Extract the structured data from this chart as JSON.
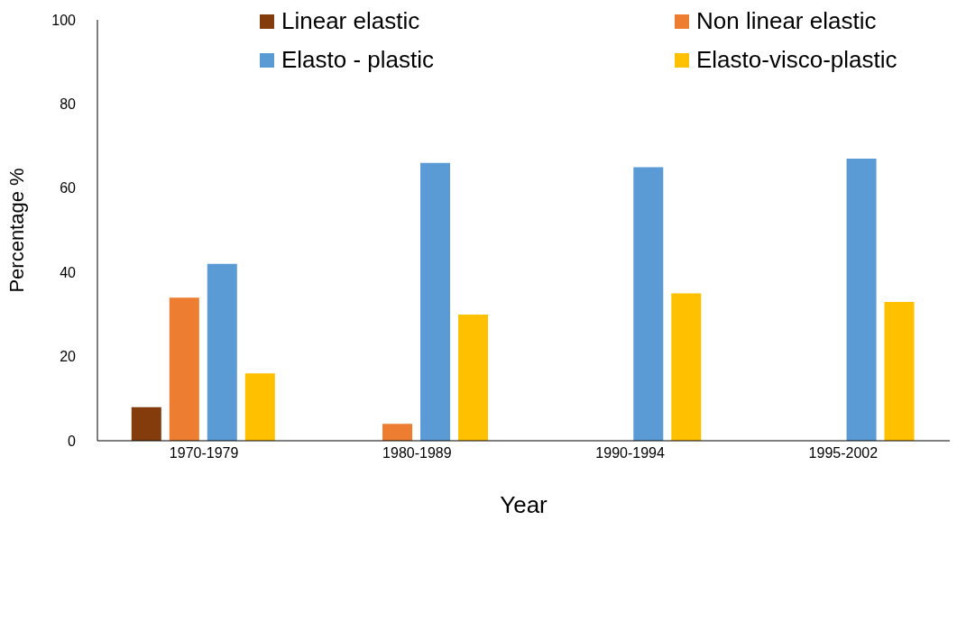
{
  "chart_data": {
    "type": "bar",
    "xlabel": "Year",
    "ylabel": "Percentage %",
    "categories": [
      "1970-1979",
      "1980-1989",
      "1990-1994",
      "1995-2002"
    ],
    "series": [
      {
        "name": "Linear elastic",
        "color": "#843c0c",
        "values": [
          8,
          0,
          0,
          0
        ]
      },
      {
        "name": "Non linear elastic",
        "color": "#ed7d31",
        "values": [
          34,
          4,
          0,
          0
        ]
      },
      {
        "name": "Elasto - plastic",
        "color": "#5b9bd5",
        "values": [
          42,
          66,
          65,
          67
        ]
      },
      {
        "name": "Elasto-visco-plastic",
        "color": "#ffc000",
        "values": [
          16,
          30,
          35,
          33
        ]
      }
    ],
    "ylim": [
      0,
      100
    ],
    "yticks": [
      0,
      20,
      40,
      60,
      80,
      100
    ],
    "grid": false,
    "legend": "top"
  }
}
